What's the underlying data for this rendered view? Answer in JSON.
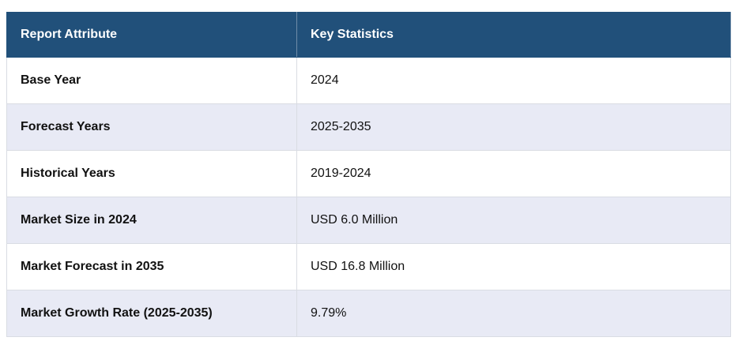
{
  "table": {
    "header": [
      "Report Attribute",
      "Key Statistics"
    ],
    "rows": [
      [
        "Base Year",
        "2024"
      ],
      [
        "Forecast Years",
        "2025-2035"
      ],
      [
        "Historical Years",
        "2019-2024"
      ],
      [
        "Market Size in 2024",
        "USD 6.0 Million"
      ],
      [
        "Market Forecast in 2035",
        "USD 16.8 Million"
      ],
      [
        "Market Growth Rate (2025-2035)",
        "9.79%"
      ]
    ]
  }
}
